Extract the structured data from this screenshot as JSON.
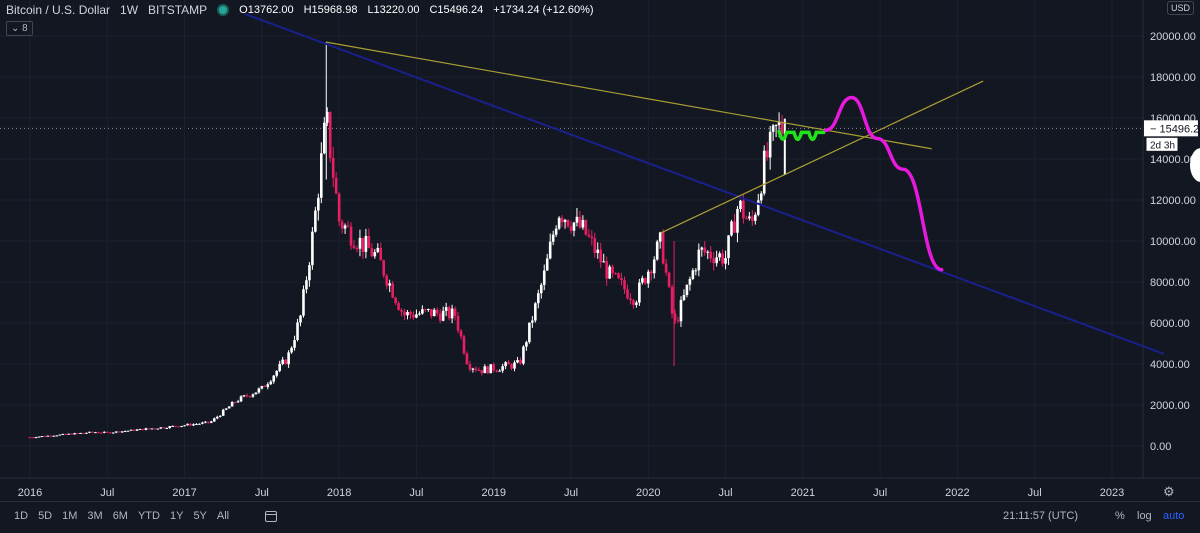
{
  "header": {
    "symbol": "Bitcoin / U.S. Dollar",
    "interval": "1W",
    "exchange": "BITSTAMP",
    "open": "O13762.00",
    "high": "H15968.98",
    "low": "L13220.00",
    "close": "C15496.24",
    "change": "+1734.24 (+12.60%)",
    "indicator_badge": "8"
  },
  "currency_button": "USD",
  "price_axis_labels": [
    "20000.00",
    "18000.00",
    "16000.00",
    "14000.00",
    "12000.00",
    "10000.00",
    "8000.00",
    "6000.00",
    "4000.00",
    "2000.00",
    "0.00"
  ],
  "last_price_label": "15496.24",
  "countdown_label": "2d 3h",
  "time_axis_labels": [
    "2016",
    "Jul",
    "2017",
    "Jul",
    "2018",
    "Jul",
    "2019",
    "Jul",
    "2020",
    "Jul",
    "2021",
    "Jul",
    "2022",
    "Jul",
    "2023"
  ],
  "timeframes": [
    "1D",
    "5D",
    "1M",
    "3M",
    "6M",
    "YTD",
    "1Y",
    "5Y",
    "All"
  ],
  "clock": "21:11:57 (UTC)",
  "scale_buttons": {
    "percent": "%",
    "log": "log",
    "auto": "auto"
  },
  "colors": {
    "up": "#ffffff",
    "down": "#e91e63",
    "background": "#131722",
    "trendline_blue": "#1a1f8c",
    "trendline_yellow": "#a8a032",
    "drawing_green": "#22e31a",
    "drawing_magenta": "#e61adc"
  },
  "chart_data": {
    "type": "candlestick",
    "ylim": [
      -1000,
      21000
    ],
    "x_range": [
      "2016-01",
      "2023-05"
    ],
    "last_close": 15496.24,
    "weekly_close_anchors": [
      {
        "date": "2016-01",
        "close": 430
      },
      {
        "date": "2016-06",
        "close": 680
      },
      {
        "date": "2016-07",
        "close": 650
      },
      {
        "date": "2016-12",
        "close": 950
      },
      {
        "date": "2017-03",
        "close": 1150
      },
      {
        "date": "2017-05",
        "close": 2200
      },
      {
        "date": "2017-06",
        "close": 2500
      },
      {
        "date": "2017-07",
        "close": 2800
      },
      {
        "date": "2017-09",
        "close": 4300
      },
      {
        "date": "2017-10",
        "close": 6300
      },
      {
        "date": "2017-11",
        "close": 10500
      },
      {
        "date": "2017-12",
        "close": 16000
      },
      {
        "date": "2018-01",
        "close": 11000
      },
      {
        "date": "2018-02",
        "close": 10300
      },
      {
        "date": "2018-04",
        "close": 9200
      },
      {
        "date": "2018-06",
        "close": 6400
      },
      {
        "date": "2018-08",
        "close": 6500
      },
      {
        "date": "2018-10",
        "close": 6400
      },
      {
        "date": "2018-11",
        "close": 4000
      },
      {
        "date": "2018-12",
        "close": 3700
      },
      {
        "date": "2019-03",
        "close": 4000
      },
      {
        "date": "2019-05",
        "close": 8500
      },
      {
        "date": "2019-06",
        "close": 11500
      },
      {
        "date": "2019-08",
        "close": 10500
      },
      {
        "date": "2019-10",
        "close": 8300
      },
      {
        "date": "2019-12",
        "close": 7200
      },
      {
        "date": "2020-02",
        "close": 10000
      },
      {
        "date": "2020-03",
        "close": 5800
      },
      {
        "date": "2020-05",
        "close": 9500
      },
      {
        "date": "2020-07",
        "close": 9200
      },
      {
        "date": "2020-08",
        "close": 11800
      },
      {
        "date": "2020-09",
        "close": 10700
      },
      {
        "date": "2020-10",
        "close": 13700
      },
      {
        "date": "2020-11",
        "close": 15496
      }
    ],
    "annotations": [
      {
        "name": "blue descending trendline",
        "from": {
          "date": "2017-12",
          "price": 19700
        },
        "to": {
          "date": "2023-05",
          "price": 4500
        }
      },
      {
        "name": "yellow upper trendline",
        "from": {
          "date": "2017-12",
          "price": 19700
        },
        "to": {
          "date": "2021-11",
          "price": 14500
        }
      },
      {
        "name": "yellow rising trendline",
        "from": {
          "date": "2020-02",
          "price": 10400
        },
        "to": {
          "date": "2022-03",
          "price": 17800
        }
      },
      {
        "name": "green projection",
        "shape": "wave",
        "from": {
          "date": "2020-11",
          "price": 15200
        },
        "to": {
          "date": "2021-02",
          "price": 15300
        }
      },
      {
        "name": "magenta projection",
        "points": [
          {
            "date": "2021-02",
            "price": 15400
          },
          {
            "date": "2021-04",
            "price": 17000
          },
          {
            "date": "2021-06",
            "price": 15000
          },
          {
            "date": "2021-08",
            "price": 13500
          },
          {
            "date": "2021-11",
            "price": 8600
          }
        ]
      }
    ]
  }
}
